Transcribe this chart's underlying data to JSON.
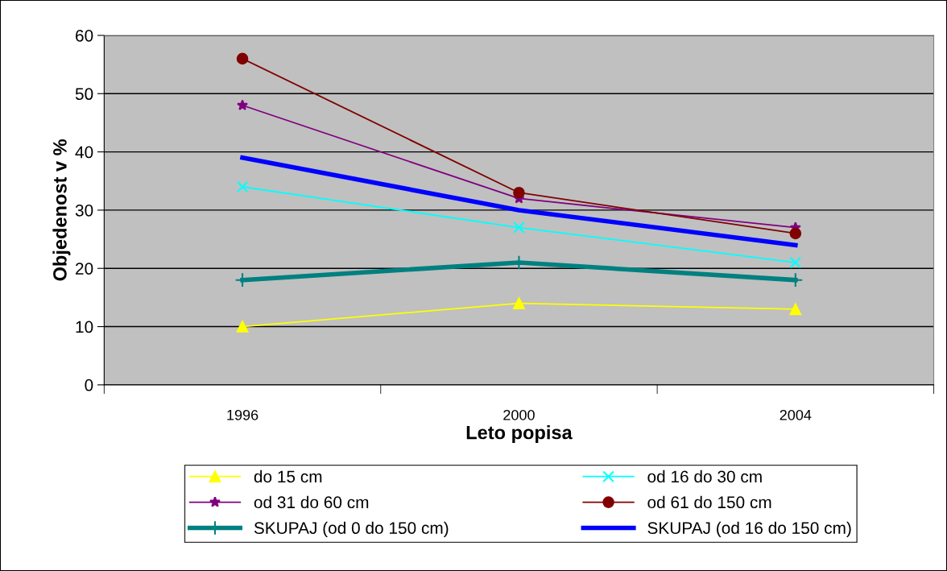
{
  "chart_data": {
    "type": "line",
    "xlabel": "Leto popisa",
    "ylabel": "Objedenost v %",
    "categories": [
      "1996",
      "2000",
      "2004"
    ],
    "series": [
      {
        "name": "do 15 cm",
        "color": "#ffff00",
        "marker": "triangle",
        "values": [
          10,
          14,
          13
        ]
      },
      {
        "name": "od 16 do 30 cm",
        "color": "#00ffff",
        "marker": "cross",
        "values": [
          34,
          27,
          21
        ]
      },
      {
        "name": "od 31 do 60 cm",
        "color": "#800080",
        "marker": "star",
        "values": [
          48,
          32,
          27
        ]
      },
      {
        "name": "od 61 do 150 cm",
        "color": "#800000",
        "marker": "circle",
        "values": [
          56,
          33,
          26
        ]
      },
      {
        "name": "SKUPAJ (od 0 do 150 cm)",
        "color": "#008080",
        "marker": "plus",
        "values": [
          18,
          21,
          18
        ]
      },
      {
        "name": "SKUPAJ (od 16 do 150 cm)",
        "color": "#0000ff",
        "marker": "none",
        "values": [
          39,
          30,
          24
        ]
      }
    ],
    "ylim": [
      0,
      60
    ],
    "yticks": [
      0,
      10,
      20,
      30,
      40,
      50,
      60
    ],
    "grid": "y",
    "legend": "bottom",
    "line_style": "solid"
  }
}
